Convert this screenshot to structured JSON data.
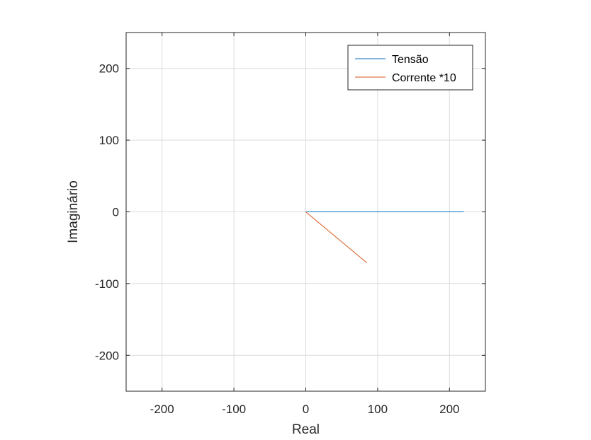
{
  "chart_data": {
    "type": "line",
    "title": "",
    "xlabel": "Real",
    "ylabel": "Imaginário",
    "xlim": [
      -250,
      250
    ],
    "ylim": [
      -250,
      250
    ],
    "xticks": [
      -200,
      -100,
      0,
      100,
      200
    ],
    "yticks": [
      -200,
      -100,
      0,
      100,
      200
    ],
    "xtick_labels": [
      "-200",
      "-100",
      "0",
      "100",
      "200"
    ],
    "ytick_labels": [
      "-200",
      "-100",
      "0",
      "100",
      "200"
    ],
    "grid": true,
    "legend_position": "top-right",
    "series": [
      {
        "name": "Tensão",
        "color": "#0072BD",
        "x": [
          0,
          220
        ],
        "y": [
          0,
          0
        ]
      },
      {
        "name": "Corrente *10",
        "color": "#D95319",
        "x": [
          0,
          85
        ],
        "y": [
          0,
          -71
        ]
      }
    ]
  }
}
